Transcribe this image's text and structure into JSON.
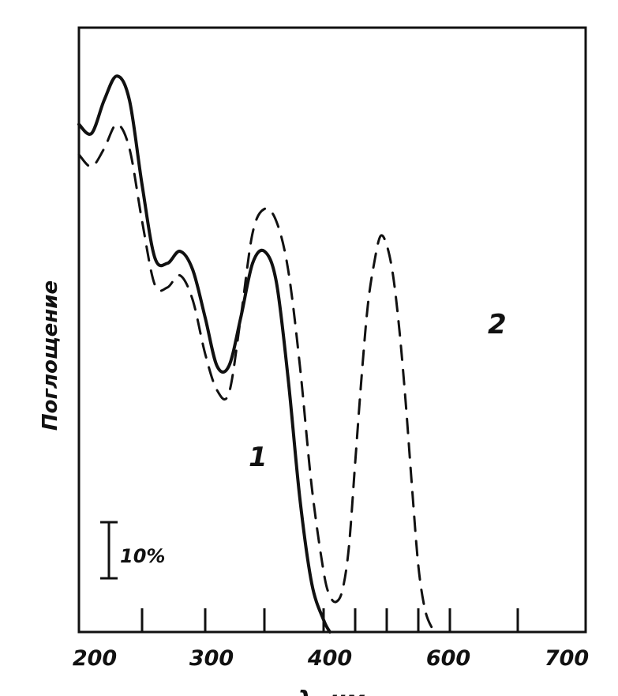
{
  "chart_data": {
    "type": "line",
    "title": "",
    "xlabel": "λ, нм",
    "ylabel": "Поглощение",
    "x_tick_labels": [
      "200",
      "300",
      "400",
      "600",
      "700"
    ],
    "scale_bar_label": "10%",
    "scale_bar_value_percent": 10,
    "grid": false,
    "legend": "none",
    "series": [
      {
        "name": "1",
        "style": "solid",
        "color": "#111111",
        "points": [
          [
            200,
            84
          ],
          [
            210,
            82.5
          ],
          [
            220,
            88
          ],
          [
            230,
            92
          ],
          [
            240,
            88
          ],
          [
            250,
            74
          ],
          [
            260,
            62
          ],
          [
            270,
            61
          ],
          [
            280,
            63
          ],
          [
            290,
            60
          ],
          [
            300,
            52
          ],
          [
            310,
            44
          ],
          [
            320,
            44
          ],
          [
            330,
            52
          ],
          [
            340,
            61
          ],
          [
            350,
            63
          ],
          [
            360,
            58
          ],
          [
            370,
            42
          ],
          [
            380,
            22
          ],
          [
            390,
            8
          ],
          [
            400,
            2
          ],
          [
            410,
            0
          ]
        ]
      },
      {
        "name": "2",
        "style": "dashed",
        "color": "#111111",
        "points": [
          [
            200,
            79
          ],
          [
            210,
            77
          ],
          [
            220,
            80
          ],
          [
            230,
            84
          ],
          [
            240,
            80
          ],
          [
            250,
            68
          ],
          [
            260,
            57.5
          ],
          [
            270,
            57
          ],
          [
            280,
            59
          ],
          [
            290,
            55
          ],
          [
            300,
            46
          ],
          [
            310,
            40
          ],
          [
            320,
            39.5
          ],
          [
            330,
            52
          ],
          [
            340,
            66
          ],
          [
            350,
            70
          ],
          [
            360,
            68
          ],
          [
            370,
            60
          ],
          [
            380,
            44
          ],
          [
            390,
            24
          ],
          [
            400,
            10
          ],
          [
            410,
            6
          ],
          [
            420,
            5
          ],
          [
            430,
            7
          ],
          [
            440,
            14
          ],
          [
            450,
            28
          ],
          [
            460,
            42
          ],
          [
            470,
            54
          ],
          [
            480,
            61
          ],
          [
            490,
            65.5
          ],
          [
            500,
            64
          ],
          [
            510,
            59
          ],
          [
            520,
            50
          ],
          [
            530,
            38
          ],
          [
            540,
            24
          ],
          [
            550,
            11
          ],
          [
            560,
            4
          ],
          [
            570,
            1
          ],
          [
            580,
            0
          ]
        ]
      }
    ]
  }
}
